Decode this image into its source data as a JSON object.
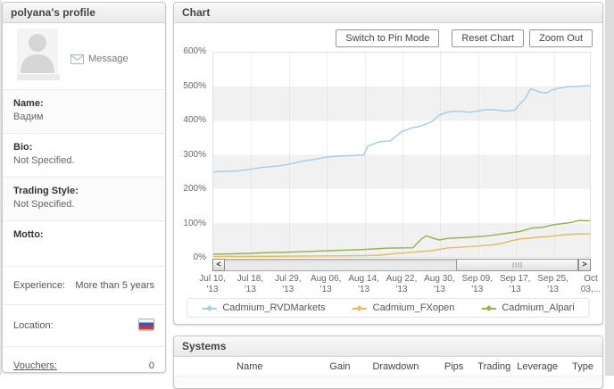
{
  "sidebar": {
    "title": "polyana's profile",
    "message_label": "Message",
    "fields": [
      {
        "label": "Name:",
        "value": "Вадим"
      },
      {
        "label": "Bio:",
        "value": "Not Specified."
      },
      {
        "label": "Trading Style:",
        "value": "Not Specified."
      },
      {
        "label": "Motto:",
        "value": ""
      }
    ],
    "rows": [
      {
        "label": "Experience:",
        "value": "More than 5 years"
      },
      {
        "label": "Location:",
        "value": "russia-flag"
      },
      {
        "label": "Vouchers:",
        "value": "0"
      }
    ],
    "icons": {
      "message": "envelope-icon",
      "location": "flag-russia-icon"
    }
  },
  "chart": {
    "title": "Chart",
    "buttons": [
      "Switch to Pin Mode",
      "Reset Chart",
      "Zoom Out"
    ],
    "scrollbar": {
      "left_glyph": "<",
      "right_glyph": ">"
    }
  },
  "chart_data": {
    "type": "line",
    "title": "Chart",
    "xlabel": "",
    "ylabel": "",
    "ylim": [
      0,
      600
    ],
    "yticks_desc": [
      "600%",
      "500%",
      "400%",
      "300%",
      "200%",
      "100%",
      "0%"
    ],
    "grid": "alternating horizontal bands, dotted vertical gridlines",
    "legend_position": "bottom",
    "xticklabels": [
      [
        "Jul 10,",
        "'13"
      ],
      [
        "Jul 18,",
        "'13"
      ],
      [
        "Jul 29,",
        "'13"
      ],
      [
        "Aug 06,",
        "'13"
      ],
      [
        "Aug 14,",
        "'13"
      ],
      [
        "Aug 22,",
        "'13"
      ],
      [
        "Aug 30,",
        "'13"
      ],
      [
        "Sep 09,",
        "'13"
      ],
      [
        "Sep 17,",
        "'13"
      ],
      [
        "Sep 25,",
        "'13"
      ],
      [
        "Oct",
        "03,..."
      ]
    ],
    "series": [
      {
        "name": "Cadmium_RVDMarkets",
        "color": "#aacde4",
        "tick_values_pct": [
          250,
          258,
          272,
          293,
          300,
          368,
          417,
          428,
          430,
          491,
          503
        ],
        "points": [
          [
            0,
            250
          ],
          [
            0.04,
            252
          ],
          [
            0.07,
            253
          ],
          [
            0.1,
            258
          ],
          [
            0.13,
            263
          ],
          [
            0.17,
            267
          ],
          [
            0.2,
            272
          ],
          [
            0.23,
            280
          ],
          [
            0.27,
            287
          ],
          [
            0.3,
            293
          ],
          [
            0.33,
            296
          ],
          [
            0.37,
            298
          ],
          [
            0.4,
            300
          ],
          [
            0.41,
            325
          ],
          [
            0.44,
            338
          ],
          [
            0.47,
            341
          ],
          [
            0.5,
            368
          ],
          [
            0.53,
            380
          ],
          [
            0.55,
            384
          ],
          [
            0.58,
            397
          ],
          [
            0.6,
            417
          ],
          [
            0.625,
            426
          ],
          [
            0.65,
            428
          ],
          [
            0.68,
            425
          ],
          [
            0.7,
            428
          ],
          [
            0.725,
            433
          ],
          [
            0.75,
            432
          ],
          [
            0.775,
            428
          ],
          [
            0.8,
            431
          ],
          [
            0.83,
            468
          ],
          [
            0.843,
            494
          ],
          [
            0.87,
            483
          ],
          [
            0.886,
            482
          ],
          [
            0.9,
            491
          ],
          [
            0.92,
            496
          ],
          [
            0.94,
            500
          ],
          [
            0.97,
            501
          ],
          [
            1,
            503
          ]
        ]
      },
      {
        "name": "Cadmium_FXopen",
        "color": "#e4bd60",
        "tick_values_pct": [
          0,
          1,
          2,
          3,
          4,
          14,
          22,
          30,
          44,
          63,
          68
        ],
        "points": [
          [
            0,
            1
          ],
          [
            0.15,
            2
          ],
          [
            0.3,
            3
          ],
          [
            0.4,
            4
          ],
          [
            0.44,
            5
          ],
          [
            0.48,
            10
          ],
          [
            0.51,
            12
          ],
          [
            0.55,
            16
          ],
          [
            0.58,
            18
          ],
          [
            0.625,
            27
          ],
          [
            0.65,
            28
          ],
          [
            0.7,
            32
          ],
          [
            0.74,
            35
          ],
          [
            0.77,
            41
          ],
          [
            0.79,
            47
          ],
          [
            0.815,
            53
          ],
          [
            0.84,
            55
          ],
          [
            0.86,
            58
          ],
          [
            0.89,
            60
          ],
          [
            0.93,
            65
          ],
          [
            0.96,
            67
          ],
          [
            1,
            68
          ]
        ]
      },
      {
        "name": "Cadmium_Alpari",
        "color": "#96b552",
        "tick_values_pct": [
          8,
          11,
          14,
          18,
          22,
          28,
          52,
          56,
          70,
          93,
          106
        ],
        "points": [
          [
            0,
            8
          ],
          [
            0.05,
            9
          ],
          [
            0.1,
            11
          ],
          [
            0.15,
            13
          ],
          [
            0.2,
            14
          ],
          [
            0.25,
            16
          ],
          [
            0.3,
            18
          ],
          [
            0.35,
            20
          ],
          [
            0.4,
            22
          ],
          [
            0.46,
            26
          ],
          [
            0.53,
            27
          ],
          [
            0.553,
            53
          ],
          [
            0.565,
            62
          ],
          [
            0.584,
            55
          ],
          [
            0.6,
            50
          ],
          [
            0.625,
            55
          ],
          [
            0.67,
            57
          ],
          [
            0.73,
            62
          ],
          [
            0.77,
            68
          ],
          [
            0.815,
            75
          ],
          [
            0.846,
            85
          ],
          [
            0.874,
            87
          ],
          [
            0.9,
            94
          ],
          [
            0.95,
            101
          ],
          [
            0.97,
            107
          ],
          [
            1,
            106
          ]
        ]
      }
    ]
  },
  "systems": {
    "title": "Systems",
    "columns": [
      "Name",
      "Gain",
      "Drawdown",
      "Pips",
      "Trading",
      "Leverage",
      "Type"
    ]
  }
}
